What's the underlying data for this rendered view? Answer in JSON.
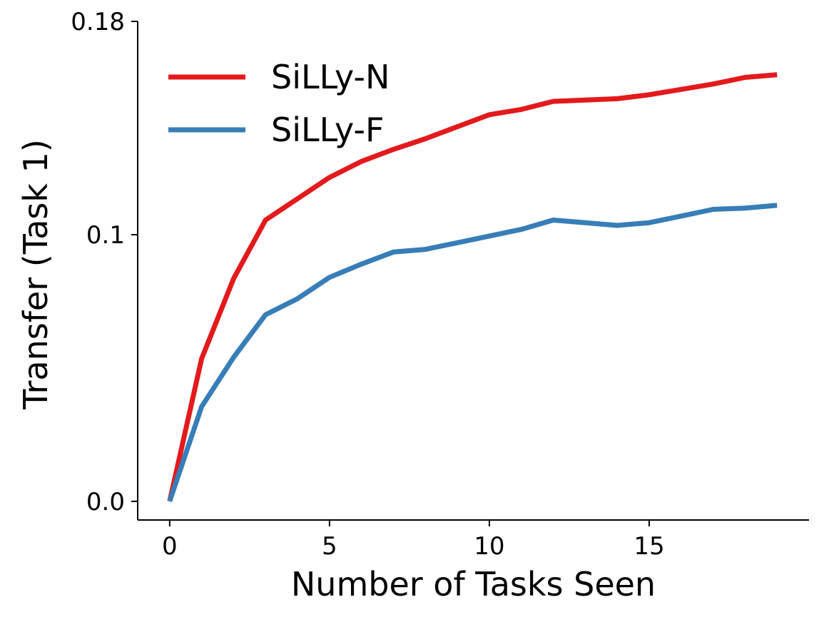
{
  "chart_data": {
    "type": "line",
    "xlabel": "Number of Tasks Seen",
    "ylabel": "Transfer (Task 1)",
    "xlim": [
      -1,
      20
    ],
    "ylim": [
      -0.007,
      0.18
    ],
    "xticks": [
      {
        "value": 0,
        "label": "0"
      },
      {
        "value": 5,
        "label": "5"
      },
      {
        "value": 10,
        "label": "10"
      },
      {
        "value": 15,
        "label": "15"
      }
    ],
    "yticks": [
      {
        "value": 0.0,
        "label": "0.0"
      },
      {
        "value": 0.1,
        "label": "0.1"
      },
      {
        "value": 0.18,
        "label": "0.18"
      }
    ],
    "x": [
      0,
      1,
      2,
      3,
      4,
      5,
      6,
      7,
      8,
      9,
      10,
      11,
      12,
      13,
      14,
      15,
      16,
      17,
      18,
      19
    ],
    "series": [
      {
        "name": "SiLLy-N",
        "color": "#e31a1c",
        "values": [
          0.0,
          0.0535,
          0.0835,
          0.1055,
          0.1135,
          0.1215,
          0.1275,
          0.132,
          0.136,
          0.1405,
          0.145,
          0.147,
          0.15,
          0.1505,
          0.151,
          0.1525,
          0.1545,
          0.1565,
          0.159,
          0.16
        ]
      },
      {
        "name": "SiLLy-F",
        "color": "#377eb8",
        "values": [
          0.0,
          0.0355,
          0.054,
          0.07,
          0.076,
          0.084,
          0.089,
          0.0935,
          0.0945,
          0.097,
          0.0995,
          0.102,
          0.1055,
          0.1045,
          0.1035,
          0.1045,
          0.107,
          0.1095,
          0.11,
          0.111
        ]
      }
    ],
    "legend_position": "top-left",
    "grid": false
  }
}
